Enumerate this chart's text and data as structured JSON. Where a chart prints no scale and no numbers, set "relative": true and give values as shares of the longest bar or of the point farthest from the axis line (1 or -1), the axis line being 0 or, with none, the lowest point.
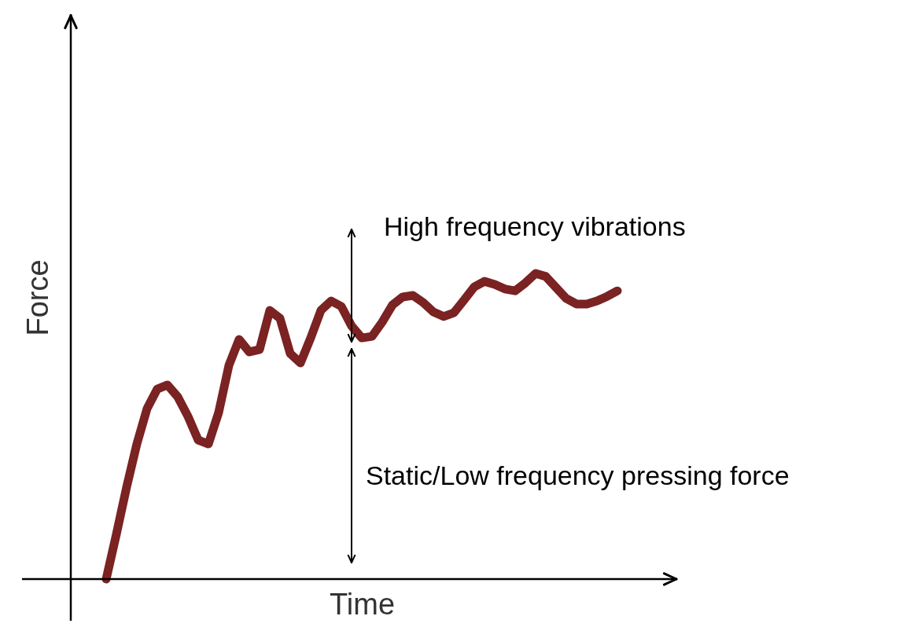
{
  "chart_data": {
    "type": "line",
    "relative": true,
    "xlabel": "Time",
    "ylabel": "Force",
    "tick_labels": false,
    "categories": [
      null,
      null,
      null,
      null,
      null,
      null,
      null,
      null,
      null,
      null,
      null,
      null,
      null,
      null,
      null,
      null,
      null,
      null,
      null,
      null,
      null,
      null,
      null,
      null,
      null,
      null,
      null,
      null,
      null,
      null,
      null,
      null,
      null,
      null,
      null,
      null,
      null,
      null,
      null,
      null,
      null,
      null,
      null,
      null,
      null,
      null,
      null,
      null,
      null,
      null,
      null
    ],
    "series": [
      {
        "color": "#7b2222",
        "values": [
          0,
          0.147,
          0.301,
          0.442,
          0.558,
          0.622,
          0.635,
          0.596,
          0.532,
          0.455,
          0.442,
          0.545,
          0.699,
          0.784,
          0.743,
          0.751,
          0.879,
          0.853,
          0.738,
          0.707,
          0.789,
          0.879,
          0.91,
          0.892,
          0.828,
          0.789,
          0.794,
          0.841,
          0.897,
          0.923,
          0.928,
          0.905,
          0.874,
          0.859,
          0.871,
          0.913,
          0.956,
          0.974,
          0.964,
          0.949,
          0.943,
          0.969,
          1.0,
          0.99,
          0.954,
          0.918,
          0.9,
          0.9,
          0.91,
          0.925,
          0.943
        ]
      }
    ],
    "annotations": [
      "High frequency vibrations",
      "Static/Low frequency pressing force"
    ]
  }
}
